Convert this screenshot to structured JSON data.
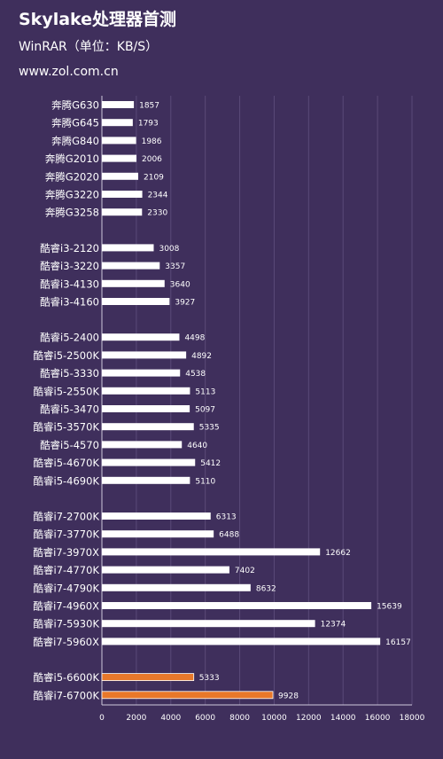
{
  "header": {
    "title": "Skylake处理器首测",
    "subtitle": "WinRAR（单位：KB/S）",
    "source": "www.zol.com.cn"
  },
  "colors": {
    "background": "#3f2f5c",
    "bar_default": "#ffffff",
    "bar_highlight": "#e8782a",
    "text": "#ffffff"
  },
  "chart_data": {
    "type": "bar",
    "orientation": "horizontal",
    "title": "Skylake处理器首测",
    "subtitle": "WinRAR（单位：KB/S）",
    "xlim": [
      0,
      18000
    ],
    "xticks": [
      0,
      2000,
      4000,
      6000,
      8000,
      10000,
      12000,
      14000,
      16000,
      18000
    ],
    "grid": true,
    "groups": [
      {
        "categories": [
          "奔腾G630",
          "奔腾G645",
          "奔腾G840",
          "奔腾G2010",
          "奔腾G2020",
          "奔腾G3220",
          "奔腾G3258"
        ],
        "values": [
          1857,
          1793,
          1986,
          2006,
          2109,
          2344,
          2330
        ],
        "highlight": false
      },
      {
        "categories": [
          "酷睿i3-2120",
          "酷睿i3-3220",
          "酷睿i3-4130",
          "酷睿i3-4160"
        ],
        "values": [
          3008,
          3357,
          3640,
          3927
        ],
        "highlight": false
      },
      {
        "categories": [
          "酷睿i5-2400",
          "酷睿i5-2500K",
          "酷睿i5-3330",
          "酷睿i5-2550K",
          "酷睿i5-3470",
          "酷睿i5-3570K",
          "酷睿i5-4570",
          "酷睿i5-4670K",
          "酷睿i5-4690K"
        ],
        "values": [
          4498,
          4892,
          4538,
          5113,
          5097,
          5335,
          4640,
          5412,
          5110
        ],
        "highlight": false
      },
      {
        "categories": [
          "酷睿i7-2700K",
          "酷睿i7-3770K",
          "酷睿i7-3970X",
          "酷睿i7-4770K",
          "酷睿i7-4790K",
          "酷睿i7-4960X",
          "酷睿i7-5930K",
          "酷睿i7-5960X"
        ],
        "values": [
          6313,
          6488,
          12662,
          7402,
          8632,
          15639,
          12374,
          16157
        ],
        "highlight": false
      },
      {
        "categories": [
          "酷睿i5-6600K",
          "酷睿i7-6700K"
        ],
        "values": [
          5333,
          9928
        ],
        "highlight": true
      }
    ]
  }
}
